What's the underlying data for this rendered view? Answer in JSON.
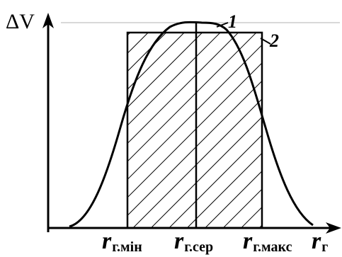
{
  "diagram": {
    "y_axis_label": "ΔV",
    "curve_labels": {
      "curve": "1",
      "rectangle": "2"
    },
    "x_ticks": {
      "min": {
        "symbol": "r",
        "sub": "г.мін"
      },
      "avg": {
        "symbol": "r",
        "sub": "г.сер"
      },
      "max": {
        "symbol": "r",
        "sub": "г.макс"
      },
      "axis": {
        "symbol": "r",
        "sub": "г"
      }
    }
  },
  "colors": {
    "ink": "#000000",
    "background": "#ffffff",
    "guide_line": "#b0b0b0"
  }
}
